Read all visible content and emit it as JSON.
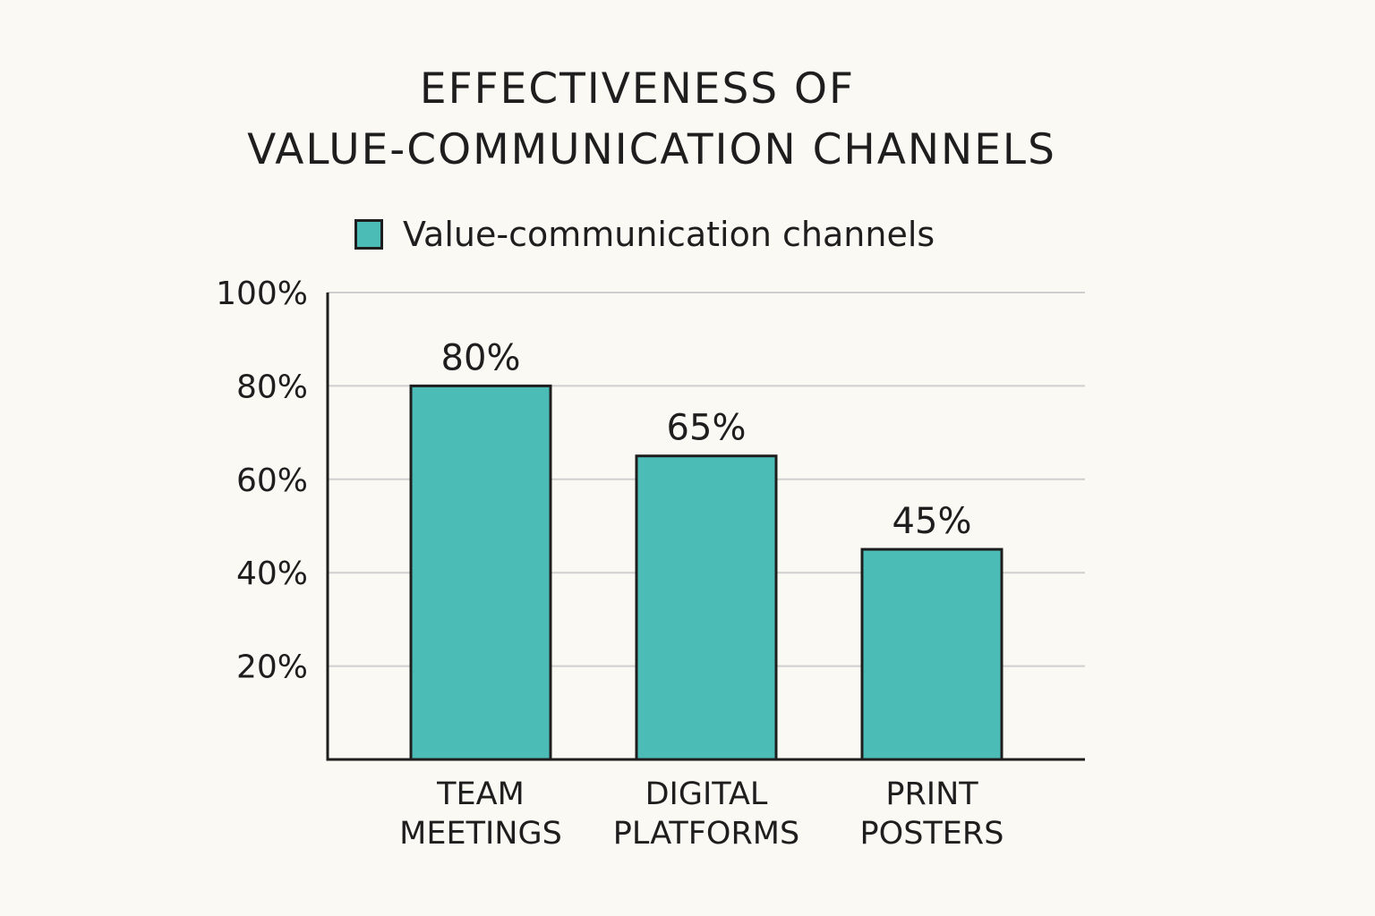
{
  "chart_data": {
    "type": "bar",
    "title": [
      "EFFECTIVENESS OF",
      "VALUE-COMMUNICATION CHANNELS"
    ],
    "legend": {
      "label": "Value-communication channels",
      "placement": "top"
    },
    "categories": [
      [
        "TEAM",
        "MEETINGS"
      ],
      [
        "DIGITAL",
        "PLATFORMS"
      ],
      [
        "PRINT",
        "POSTERS"
      ]
    ],
    "series": [
      {
        "name": "Value-communication channels",
        "values": [
          80,
          65,
          45
        ],
        "value_labels": [
          "80%",
          "65%",
          "45%"
        ]
      }
    ],
    "yticks": [
      20,
      40,
      60,
      80,
      100
    ],
    "ytick_labels": [
      "20%",
      "40%",
      "60%",
      "80%",
      "100%"
    ],
    "ylim": [
      0,
      100
    ],
    "xlabel": "",
    "ylabel": "",
    "grid": true,
    "colors": {
      "bar_fill": "#4cbdb6",
      "bar_stroke": "#1e1e1e",
      "grid": "#cfcfcf",
      "axis": "#1e1e1e"
    }
  }
}
